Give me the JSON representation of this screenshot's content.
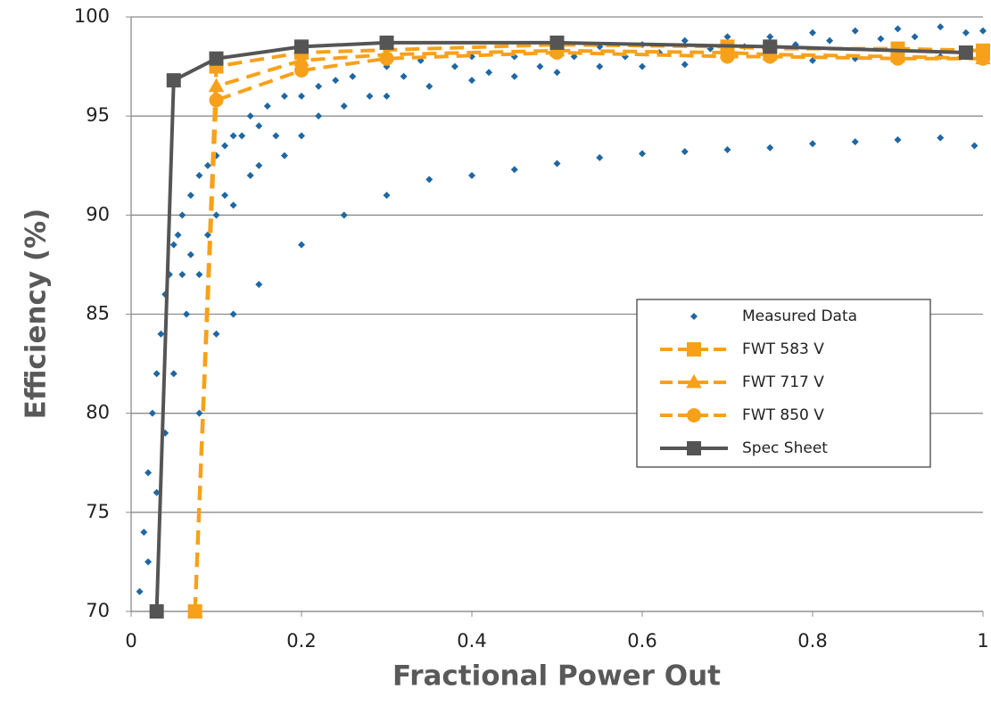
{
  "chart_data": {
    "type": "scatter",
    "x_label": "Fractional Power Out",
    "y_label": "Efficiency (%)",
    "xlim": [
      0,
      1
    ],
    "ylim": [
      70,
      100
    ],
    "xticks": [
      0,
      0.2,
      0.4,
      0.6,
      0.8,
      1
    ],
    "yticks": [
      70,
      75,
      80,
      85,
      90,
      95,
      100
    ],
    "grid": true,
    "legend": "right",
    "series": [
      {
        "name": "Measured Data",
        "color": "#1f67a3",
        "kind": "scatter",
        "marker": "diamond",
        "x": [
          0.01,
          0.015,
          0.02,
          0.02,
          0.025,
          0.03,
          0.03,
          0.035,
          0.04,
          0.04,
          0.045,
          0.05,
          0.05,
          0.055,
          0.06,
          0.06,
          0.065,
          0.07,
          0.07,
          0.08,
          0.08,
          0.09,
          0.09,
          0.1,
          0.1,
          0.11,
          0.11,
          0.12,
          0.12,
          0.13,
          0.14,
          0.14,
          0.15,
          0.15,
          0.16,
          0.17,
          0.18,
          0.18,
          0.2,
          0.2,
          0.22,
          0.22,
          0.24,
          0.25,
          0.26,
          0.28,
          0.3,
          0.3,
          0.32,
          0.34,
          0.35,
          0.38,
          0.4,
          0.4,
          0.42,
          0.45,
          0.45,
          0.48,
          0.5,
          0.5,
          0.52,
          0.55,
          0.55,
          0.58,
          0.6,
          0.6,
          0.62,
          0.65,
          0.65,
          0.68,
          0.7,
          0.7,
          0.72,
          0.75,
          0.75,
          0.78,
          0.8,
          0.8,
          0.82,
          0.85,
          0.85,
          0.88,
          0.9,
          0.9,
          0.92,
          0.95,
          0.95,
          0.98,
          1.0,
          0.08,
          0.1,
          0.12,
          0.15,
          0.2,
          0.25,
          0.3,
          0.35,
          0.4,
          0.45,
          0.5,
          0.55,
          0.6,
          0.65,
          0.7,
          0.75,
          0.8,
          0.85,
          0.9,
          0.95,
          0.99
        ],
        "values": [
          71,
          74,
          77,
          72.5,
          80,
          82,
          76,
          84,
          86,
          79,
          87,
          88.5,
          82,
          89,
          87,
          90,
          85,
          91,
          88,
          92,
          87,
          92.5,
          89,
          93,
          90,
          93.5,
          91,
          94,
          90.5,
          94,
          95,
          92,
          94.5,
          92.5,
          95.5,
          94,
          96,
          93,
          96,
          94,
          96.5,
          95,
          96.8,
          95.5,
          97,
          96,
          97.5,
          96,
          97,
          97.8,
          96.5,
          97.5,
          98,
          96.8,
          97.2,
          98,
          97,
          97.5,
          98.3,
          97.2,
          98,
          98.5,
          97.5,
          98,
          98.6,
          97.5,
          98.2,
          98.8,
          97.6,
          98.4,
          99,
          97.8,
          98.5,
          99,
          97.8,
          98.6,
          99.2,
          97.8,
          98.8,
          99.3,
          97.9,
          98.9,
          99.4,
          98,
          99,
          99.5,
          98,
          99.2,
          99.3,
          80,
          84,
          85,
          86.5,
          88.5,
          90,
          91,
          91.8,
          92,
          92.3,
          92.6,
          92.9,
          93.1,
          93.2,
          93.3,
          93.4,
          93.6,
          93.7,
          93.8,
          93.9,
          93.5
        ]
      },
      {
        "name": "FWT 583 V",
        "color": "#f7a11a",
        "kind": "line",
        "marker": "square",
        "dashed": true,
        "x": [
          0.075,
          0.1,
          0.2,
          0.5,
          0.7,
          0.75,
          0.9,
          1.0
        ],
        "values": [
          70,
          97.5,
          98.2,
          98.6,
          98.5,
          98.4,
          98.4,
          98.3
        ]
      },
      {
        "name": "FWT 717 V",
        "color": "#f7a11a",
        "kind": "line",
        "marker": "triangle",
        "dashed": true,
        "x": [
          0.075,
          0.1,
          0.2,
          0.3,
          0.5,
          0.7,
          0.75,
          0.9,
          1.0
        ],
        "values": [
          70,
          96.5,
          97.8,
          98.1,
          98.3,
          98.2,
          98.1,
          98.0,
          97.9
        ]
      },
      {
        "name": "FWT 850 V",
        "color": "#f7a11a",
        "kind": "line",
        "marker": "circle",
        "dashed": true,
        "x": [
          0.075,
          0.1,
          0.2,
          0.3,
          0.5,
          0.7,
          0.75,
          0.9,
          1.0
        ],
        "values": [
          70,
          95.8,
          97.3,
          97.9,
          98.2,
          98.0,
          98.0,
          97.9,
          97.9
        ]
      },
      {
        "name": "Spec Sheet",
        "color": "#555555",
        "kind": "line",
        "marker": "square",
        "dashed": false,
        "x": [
          0.03,
          0.05,
          0.1,
          0.2,
          0.3,
          0.5,
          0.75,
          0.98
        ],
        "values": [
          70,
          96.8,
          97.9,
          98.5,
          98.7,
          98.7,
          98.5,
          98.2
        ]
      }
    ]
  }
}
